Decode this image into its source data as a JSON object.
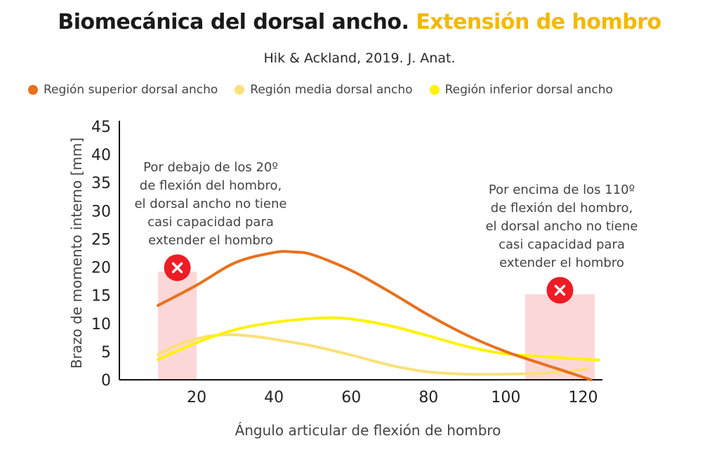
{
  "header": {
    "title_main": "Biomecánica del dorsal ancho.",
    "title_accent": "Extensión de hombro",
    "subtitle": "Hik & Ackland, 2019. J. Anat."
  },
  "colors": {
    "accent": "#f5b800",
    "superior": "#e8711c",
    "media": "#fbe07a",
    "inferior": "#fff200",
    "zone": "#fbd0d0",
    "cross": "#ee1c25"
  },
  "chart_data": {
    "type": "line",
    "xlabel": "Ángulo articular de flexión de hombro",
    "ylabel": "Brazo de momento interno [mm]",
    "xlim": [
      0,
      125
    ],
    "ylim": [
      0,
      45
    ],
    "x_ticks": [
      20,
      40,
      60,
      80,
      100,
      120
    ],
    "y_ticks": [
      0,
      5,
      10,
      15,
      20,
      25,
      30,
      35,
      40,
      45
    ],
    "grid": false,
    "legend_position": "top",
    "series": [
      {
        "name": "Región superior dorsal ancho",
        "color": "#e8711c",
        "x": [
          10,
          20,
          30,
          40,
          45,
          50,
          60,
          70,
          80,
          90,
          100,
          110,
          115,
          122
        ],
        "y": [
          13.2,
          16.8,
          20.8,
          22.6,
          22.7,
          22.2,
          19.4,
          15.6,
          11.5,
          7.9,
          5.0,
          2.7,
          1.6,
          0
        ]
      },
      {
        "name": "Región media dorsal ancho",
        "color": "#fbe07a",
        "x": [
          10,
          15,
          20,
          25,
          30,
          35,
          40,
          50,
          60,
          70,
          80,
          90,
          100,
          110,
          121
        ],
        "y": [
          4.5,
          6.2,
          7.3,
          7.9,
          8.0,
          7.7,
          7.2,
          6.0,
          4.4,
          2.6,
          1.4,
          1.0,
          1.0,
          1.2,
          1.9
        ]
      },
      {
        "name": "Región inferior dorsal ancho",
        "color": "#fff200",
        "x": [
          10,
          20,
          30,
          40,
          50,
          55,
          60,
          70,
          80,
          90,
          100,
          110,
          124
        ],
        "y": [
          3.6,
          6.6,
          8.9,
          10.2,
          10.9,
          11.0,
          10.8,
          9.6,
          7.8,
          5.9,
          4.6,
          4.1,
          3.5
        ]
      }
    ],
    "zones": [
      {
        "x0": 10,
        "x1": 20,
        "ymax": 19.2,
        "cross_x": 15,
        "cross_y": 19.9,
        "text": [
          "Por debajo de los 20º",
          "de flexión del hombro,",
          "el dorsal ancho no tiene",
          "casi capacidad para",
          "extender el hombro"
        ]
      },
      {
        "x0": 105,
        "x1": 123,
        "ymax": 15.2,
        "cross_x": 114,
        "cross_y": 15.9,
        "text": [
          "Por encima de los 110º",
          "de flexión del hombro,",
          "el dorsal ancho no tiene",
          "casi capacidad para",
          "extender el hombro"
        ]
      }
    ]
  }
}
